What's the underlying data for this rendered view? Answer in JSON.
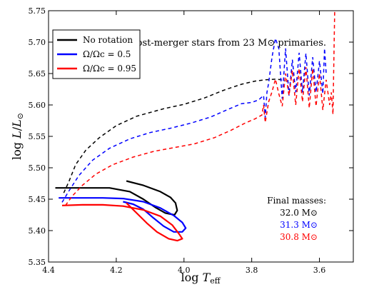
{
  "chart_data": {
    "type": "line",
    "title": "",
    "annotation": "35 M⊙ post-merger stars from 23 M⊙ primaries.",
    "xlabel": "log T_eff",
    "ylabel": "log L/L⊙",
    "xlim": [
      4.4,
      3.5
    ],
    "ylim": [
      5.35,
      5.75
    ],
    "x_inverted": true,
    "grid": false,
    "legend_position": "top-left",
    "x_ticks": [
      4.4,
      4.2,
      4.0,
      3.8,
      3.6
    ],
    "x_tick_labels": [
      "4.4",
      "4.2",
      "4.0",
      "3.8",
      "3.6"
    ],
    "y_ticks": [
      5.35,
      5.4,
      5.45,
      5.5,
      5.55,
      5.6,
      5.65,
      5.7,
      5.75
    ],
    "y_tick_labels": [
      "5.35",
      "5.40",
      "5.45",
      "5.50",
      "5.55",
      "5.60",
      "5.65",
      "5.70",
      "5.75"
    ],
    "final_masses_title": "Final masses:",
    "final_masses": [
      {
        "label": "32.0 M⊙",
        "color": "#000000"
      },
      {
        "label": "31.3 M⊙",
        "color": "#0000ff"
      },
      {
        "label": "30.8 M⊙",
        "color": "#ff0000"
      }
    ],
    "series": [
      {
        "name": "No rotation",
        "color": "#000000",
        "ms": [
          [
            4.17,
            5.479
          ],
          [
            4.12,
            5.472
          ],
          [
            4.07,
            5.462
          ],
          [
            4.04,
            5.453
          ],
          [
            4.025,
            5.444
          ],
          [
            4.02,
            5.432
          ],
          [
            4.028,
            5.425
          ],
          [
            4.055,
            5.428
          ],
          [
            4.085,
            5.437
          ],
          [
            4.12,
            5.45
          ],
          [
            4.16,
            5.462
          ],
          [
            4.22,
            5.468
          ],
          [
            4.3,
            5.468
          ],
          [
            4.38,
            5.468
          ]
        ],
        "post": [
          [
            4.355,
            5.46
          ],
          [
            4.34,
            5.478
          ],
          [
            4.32,
            5.505
          ],
          [
            4.29,
            5.528
          ],
          [
            4.25,
            5.548
          ],
          [
            4.2,
            5.567
          ],
          [
            4.14,
            5.582
          ],
          [
            4.06,
            5.594
          ],
          [
            4.0,
            5.601
          ],
          [
            3.94,
            5.611
          ],
          [
            3.88,
            5.624
          ],
          [
            3.83,
            5.633
          ],
          [
            3.79,
            5.638
          ],
          [
            3.76,
            5.64
          ],
          [
            3.73,
            5.641
          ],
          [
            3.71,
            5.64
          ],
          [
            3.7,
            5.638
          ]
        ]
      },
      {
        "name": "Ω/Ωc = 0.5",
        "color": "#0000ff",
        "ms": [
          [
            4.37,
            5.452
          ],
          [
            4.3,
            5.452
          ],
          [
            4.24,
            5.452
          ],
          [
            4.18,
            5.451
          ],
          [
            4.12,
            5.446
          ],
          [
            4.07,
            5.436
          ],
          [
            4.03,
            5.424
          ],
          [
            4.005,
            5.413
          ],
          [
            3.995,
            5.404
          ],
          [
            4.005,
            5.398
          ],
          [
            4.03,
            5.398
          ],
          [
            4.06,
            5.407
          ],
          [
            4.09,
            5.42
          ],
          [
            4.12,
            5.434
          ],
          [
            4.15,
            5.442
          ],
          [
            4.18,
            5.446
          ]
        ],
        "post": [
          [
            4.36,
            5.445
          ],
          [
            4.34,
            5.463
          ],
          [
            4.31,
            5.488
          ],
          [
            4.27,
            5.512
          ],
          [
            4.22,
            5.531
          ],
          [
            4.16,
            5.546
          ],
          [
            4.1,
            5.556
          ],
          [
            4.04,
            5.563
          ],
          [
            3.98,
            5.571
          ],
          [
            3.92,
            5.581
          ],
          [
            3.87,
            5.593
          ],
          [
            3.83,
            5.602
          ],
          [
            3.8,
            5.604
          ],
          [
            3.78,
            5.608
          ],
          [
            3.765,
            5.615
          ],
          [
            3.76,
            5.58
          ],
          [
            3.755,
            5.62
          ],
          [
            3.75,
            5.635
          ],
          [
            3.74,
            5.676
          ],
          [
            3.73,
            5.706
          ],
          [
            3.72,
            5.69
          ],
          [
            3.71,
            5.61
          ],
          [
            3.7,
            5.69
          ],
          [
            3.69,
            5.615
          ],
          [
            3.68,
            5.672
          ],
          [
            3.67,
            5.62
          ],
          [
            3.66,
            5.683
          ],
          [
            3.65,
            5.62
          ],
          [
            3.64,
            5.682
          ],
          [
            3.63,
            5.615
          ],
          [
            3.62,
            5.676
          ],
          [
            3.61,
            5.62
          ],
          [
            3.6,
            5.67
          ],
          [
            3.59,
            5.618
          ],
          [
            3.585,
            5.69
          ],
          [
            3.58,
            5.65
          ]
        ]
      },
      {
        "name": "Ω/Ωc = 0.95",
        "color": "#ff0000",
        "ms": [
          [
            4.36,
            5.44
          ],
          [
            4.3,
            5.441
          ],
          [
            4.24,
            5.441
          ],
          [
            4.18,
            5.439
          ],
          [
            4.12,
            5.433
          ],
          [
            4.07,
            5.423
          ],
          [
            4.035,
            5.409
          ],
          [
            4.015,
            5.395
          ],
          [
            4.005,
            5.387
          ],
          [
            4.02,
            5.384
          ],
          [
            4.045,
            5.387
          ],
          [
            4.08,
            5.398
          ],
          [
            4.11,
            5.412
          ],
          [
            4.14,
            5.428
          ],
          [
            4.17,
            5.444
          ]
        ],
        "post": [
          [
            4.35,
            5.44
          ],
          [
            4.33,
            5.455
          ],
          [
            4.3,
            5.472
          ],
          [
            4.26,
            5.49
          ],
          [
            4.21,
            5.505
          ],
          [
            4.15,
            5.517
          ],
          [
            4.09,
            5.526
          ],
          [
            4.03,
            5.532
          ],
          [
            3.97,
            5.538
          ],
          [
            3.91,
            5.548
          ],
          [
            3.86,
            5.56
          ],
          [
            3.82,
            5.571
          ],
          [
            3.79,
            5.578
          ],
          [
            3.77,
            5.584
          ],
          [
            3.765,
            5.6
          ],
          [
            3.76,
            5.572
          ],
          [
            3.75,
            5.605
          ],
          [
            3.74,
            5.621
          ],
          [
            3.73,
            5.641
          ],
          [
            3.72,
            5.618
          ],
          [
            3.71,
            5.598
          ],
          [
            3.7,
            5.65
          ],
          [
            3.69,
            5.615
          ],
          [
            3.68,
            5.655
          ],
          [
            3.67,
            5.6
          ],
          [
            3.66,
            5.658
          ],
          [
            3.65,
            5.605
          ],
          [
            3.64,
            5.66
          ],
          [
            3.63,
            5.595
          ],
          [
            3.62,
            5.658
          ],
          [
            3.61,
            5.598
          ],
          [
            3.6,
            5.65
          ],
          [
            3.59,
            5.592
          ],
          [
            3.58,
            5.64
          ],
          [
            3.57,
            5.6
          ],
          [
            3.565,
            5.62
          ],
          [
            3.56,
            5.585
          ],
          [
            3.555,
            5.75
          ]
        ]
      }
    ]
  }
}
